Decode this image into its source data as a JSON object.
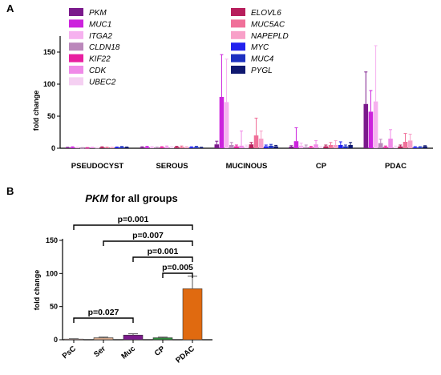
{
  "panel_a_label": "A",
  "panel_b_label": "B",
  "chart_data": [
    {
      "type": "bar",
      "panel": "A",
      "title": "",
      "xlabel": "",
      "ylabel": "fold change",
      "ylim": [
        0,
        175
      ],
      "yticks": [
        0,
        50,
        100,
        150
      ],
      "grid": false,
      "legend_placement": "top",
      "categories": [
        "PSEUDOCYST",
        "SEROUS",
        "MUCINOUS",
        "CP",
        "PDAC"
      ],
      "series": [
        {
          "name": "PKM",
          "color": "#7b1a8c",
          "values": [
            1,
            1.5,
            6,
            2.5,
            69
          ],
          "errors": [
            0.5,
            0.8,
            5,
            1.5,
            50
          ]
        },
        {
          "name": "MUC1",
          "color": "#cc22dd",
          "values": [
            1.5,
            2,
            80,
            11,
            57
          ],
          "errors": [
            0.8,
            1,
            66,
            21,
            33
          ]
        },
        {
          "name": "ITGA2",
          "color": "#f6b1ef",
          "values": [
            1,
            1.5,
            72,
            4,
            73
          ],
          "errors": [
            0.5,
            1,
            67,
            4,
            87
          ]
        },
        {
          "name": "CLDN18",
          "color": "#bb88bb",
          "values": [
            0.5,
            1,
            5,
            2,
            8
          ],
          "errors": [
            0.5,
            0.8,
            4,
            3,
            6
          ]
        },
        {
          "name": "KIF22",
          "color": "#e81fa0",
          "values": [
            0.5,
            1.5,
            3,
            1.5,
            2
          ],
          "errors": [
            0.5,
            1,
            2,
            1.5,
            1.5
          ]
        },
        {
          "name": "CDK",
          "color": "#f08ae8",
          "values": [
            1,
            2,
            4,
            6,
            15
          ],
          "errors": [
            0.5,
            1.5,
            23,
            6,
            14
          ]
        },
        {
          "name": "UBEC2",
          "color": "#f5d0f2",
          "values": [
            0.8,
            1.5,
            3,
            1.5,
            2
          ],
          "errors": [
            0.5,
            1,
            2,
            1,
            1.5
          ]
        },
        {
          "name": "ELOVL6",
          "color": "#b71e5c",
          "values": [
            1.5,
            2,
            6,
            3,
            3
          ],
          "errors": [
            0.8,
            1,
            3,
            2,
            2
          ]
        },
        {
          "name": "MUC5AC",
          "color": "#f07099",
          "values": [
            1,
            2,
            20,
            5,
            10
          ],
          "errors": [
            0.8,
            1.5,
            27,
            4,
            13
          ]
        },
        {
          "name": "NAPEPLD",
          "color": "#f8a0c8",
          "values": [
            1,
            1.5,
            15,
            5,
            12
          ],
          "errors": [
            0.5,
            1,
            12,
            7,
            10
          ]
        },
        {
          "name": "MYC",
          "color": "#2222ee",
          "values": [
            1.5,
            1.5,
            3,
            5,
            1.5
          ],
          "errors": [
            0.5,
            0.8,
            2,
            5,
            1
          ]
        },
        {
          "name": "MUC4",
          "color": "#1c30c0",
          "values": [
            2,
            2,
            4,
            3,
            1.5
          ],
          "errors": [
            0.8,
            1,
            2,
            2,
            1
          ]
        },
        {
          "name": "PYGL",
          "color": "#0f1870",
          "values": [
            1.5,
            1,
            3,
            5,
            3
          ],
          "errors": [
            0.5,
            0.6,
            1.5,
            4,
            1
          ]
        }
      ]
    },
    {
      "type": "bar",
      "panel": "B",
      "title": "PKM for all groups",
      "title_gene": "PKM",
      "title_rest": " for all groups",
      "xlabel": "",
      "ylabel": "fold change",
      "ylim": [
        0,
        150
      ],
      "yticks": [
        0,
        50,
        100,
        150
      ],
      "grid": false,
      "categories": [
        "PsC",
        "Ser",
        "Muc",
        "CP",
        "PDAC"
      ],
      "values": [
        1,
        3,
        7,
        3,
        77
      ],
      "errors": [
        0.5,
        1,
        2,
        1,
        19
      ],
      "colors": [
        "#c9a5a0",
        "#d6a88a",
        "#7b1a8c",
        "#2e8b3a",
        "#e06a10"
      ],
      "significance": [
        {
          "from": "PsC",
          "to": "PDAC",
          "label": "p=0.001"
        },
        {
          "from": "Ser",
          "to": "PDAC",
          "label": "p=0.007"
        },
        {
          "from": "Muc",
          "to": "PDAC",
          "label": "p=0.001"
        },
        {
          "from": "CP",
          "to": "PDAC",
          "label": "p=0.005"
        },
        {
          "from": "PsC",
          "to": "Muc",
          "label": "p=0.027"
        }
      ]
    }
  ]
}
